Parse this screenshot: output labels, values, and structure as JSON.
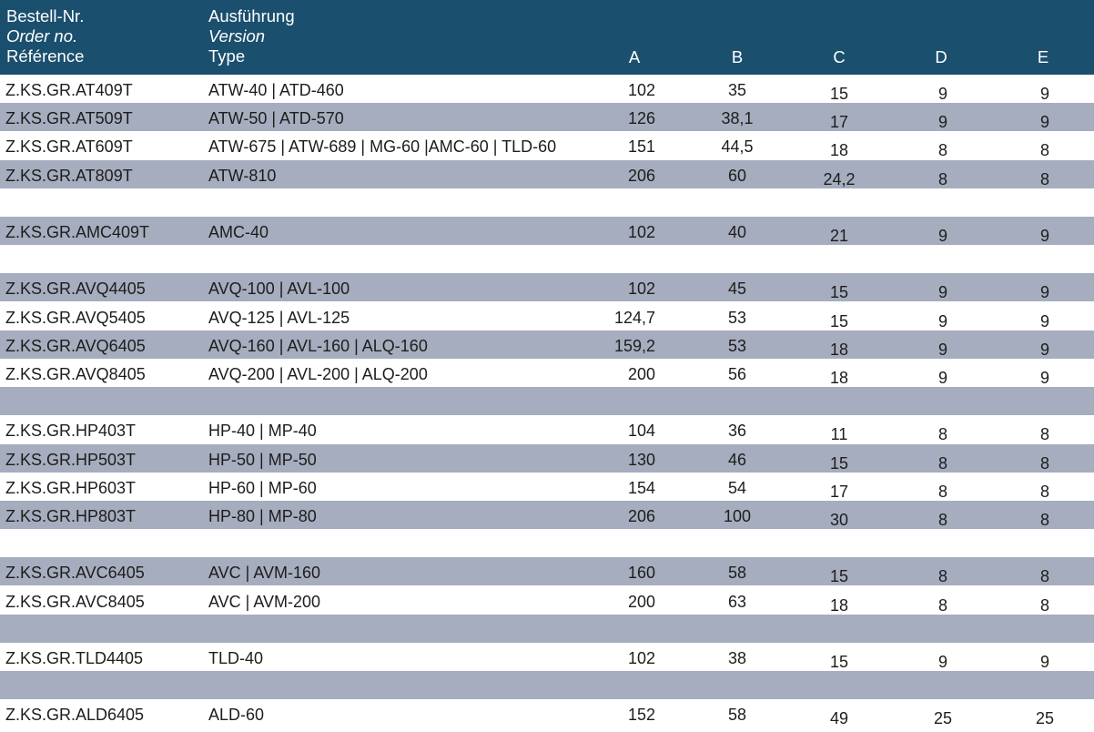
{
  "header": {
    "order": [
      "Bestell-Nr.",
      "Order no.",
      "Référence"
    ],
    "version": [
      "Ausführung",
      "Version",
      "Type"
    ],
    "cols": [
      "A",
      "B",
      "C",
      "D",
      "E"
    ]
  },
  "rows": [
    {
      "order": "Z.KS.GR.AT409T",
      "type": "ATW-40 | ATD-460",
      "a": "102",
      "b": "35",
      "c": "15",
      "d": "9",
      "e": "9"
    },
    {
      "order": "Z.KS.GR.AT509T",
      "type": "ATW-50 | ATD-570",
      "a": "126",
      "b": "38,1",
      "c": "17",
      "d": "9",
      "e": "9"
    },
    {
      "order": "Z.KS.GR.AT609T",
      "type": "ATW-675 | ATW-689 | MG-60 |AMC-60 | TLD-60",
      "a": "151",
      "b": "44,5",
      "c": "18",
      "d": "8",
      "e": "8"
    },
    {
      "order": "Z.KS.GR.AT809T",
      "type": "ATW-810",
      "a": "206",
      "b": "60",
      "c": "24,2",
      "d": "8",
      "e": "8"
    },
    {
      "order": "",
      "type": "",
      "a": "",
      "b": "",
      "c": "",
      "d": "",
      "e": ""
    },
    {
      "order": "Z.KS.GR.AMC409T",
      "type": "AMC-40",
      "a": "102",
      "b": "40",
      "c": "21",
      "d": "9",
      "e": "9"
    },
    {
      "order": "",
      "type": "",
      "a": "",
      "b": "",
      "c": "",
      "d": "",
      "e": ""
    },
    {
      "order": "Z.KS.GR.AVQ4405",
      "type": "AVQ-100 | AVL-100",
      "a": "102",
      "b": "45",
      "c": "15",
      "d": "9",
      "e": "9"
    },
    {
      "order": "Z.KS.GR.AVQ5405",
      "type": "AVQ-125 | AVL-125",
      "a": "124,7",
      "b": "53",
      "c": "15",
      "d": "9",
      "e": "9"
    },
    {
      "order": "Z.KS.GR.AVQ6405",
      "type": "AVQ-160 | AVL-160 | ALQ-160",
      "a": "159,2",
      "b": "53",
      "c": "18",
      "d": "9",
      "e": "9"
    },
    {
      "order": "Z.KS.GR.AVQ8405",
      "type": "AVQ-200 | AVL-200 | ALQ-200",
      "a": "200",
      "b": "56",
      "c": "18",
      "d": "9",
      "e": "9"
    },
    {
      "order": "",
      "type": "",
      "a": "",
      "b": "",
      "c": "",
      "d": "",
      "e": ""
    },
    {
      "order": "Z.KS.GR.HP403T",
      "type": "HP-40 | MP-40",
      "a": "104",
      "b": "36",
      "c": "11",
      "d": "8",
      "e": "8"
    },
    {
      "order": "Z.KS.GR.HP503T",
      "type": "HP-50 | MP-50",
      "a": "130",
      "b": "46",
      "c": "15",
      "d": "8",
      "e": "8"
    },
    {
      "order": "Z.KS.GR.HP603T",
      "type": "HP-60 | MP-60",
      "a": "154",
      "b": "54",
      "c": "17",
      "d": "8",
      "e": "8"
    },
    {
      "order": "Z.KS.GR.HP803T",
      "type": "HP-80 | MP-80",
      "a": "206",
      "b": "100",
      "c": "30",
      "d": "8",
      "e": "8"
    },
    {
      "order": "",
      "type": "",
      "a": "",
      "b": "",
      "c": "",
      "d": "",
      "e": ""
    },
    {
      "order": "Z.KS.GR.AVC6405",
      "type": "AVC | AVM-160",
      "a": "160",
      "b": "58",
      "c": "15",
      "d": "8",
      "e": "8"
    },
    {
      "order": "Z.KS.GR.AVC8405",
      "type": "AVC | AVM-200",
      "a": "200",
      "b": "63",
      "c": "18",
      "d": "8",
      "e": "8"
    },
    {
      "order": "",
      "type": "",
      "a": "",
      "b": "",
      "c": "",
      "d": "",
      "e": ""
    },
    {
      "order": "Z.KS.GR.TLD4405",
      "type": "TLD-40",
      "a": "102",
      "b": "38",
      "c": "15",
      "d": "9",
      "e": "9"
    },
    {
      "order": "",
      "type": "",
      "a": "",
      "b": "",
      "c": "",
      "d": "",
      "e": ""
    },
    {
      "order": "Z.KS.GR.ALD6405",
      "type": "ALD-60",
      "a": "152",
      "b": "58",
      "c": "49",
      "d": "25",
      "e": "25"
    }
  ],
  "colors": {
    "header_bg": "#1a4f6e",
    "header_text": "#ffffff",
    "stripe": "#a6adbf",
    "text": "#1d1d1b"
  }
}
